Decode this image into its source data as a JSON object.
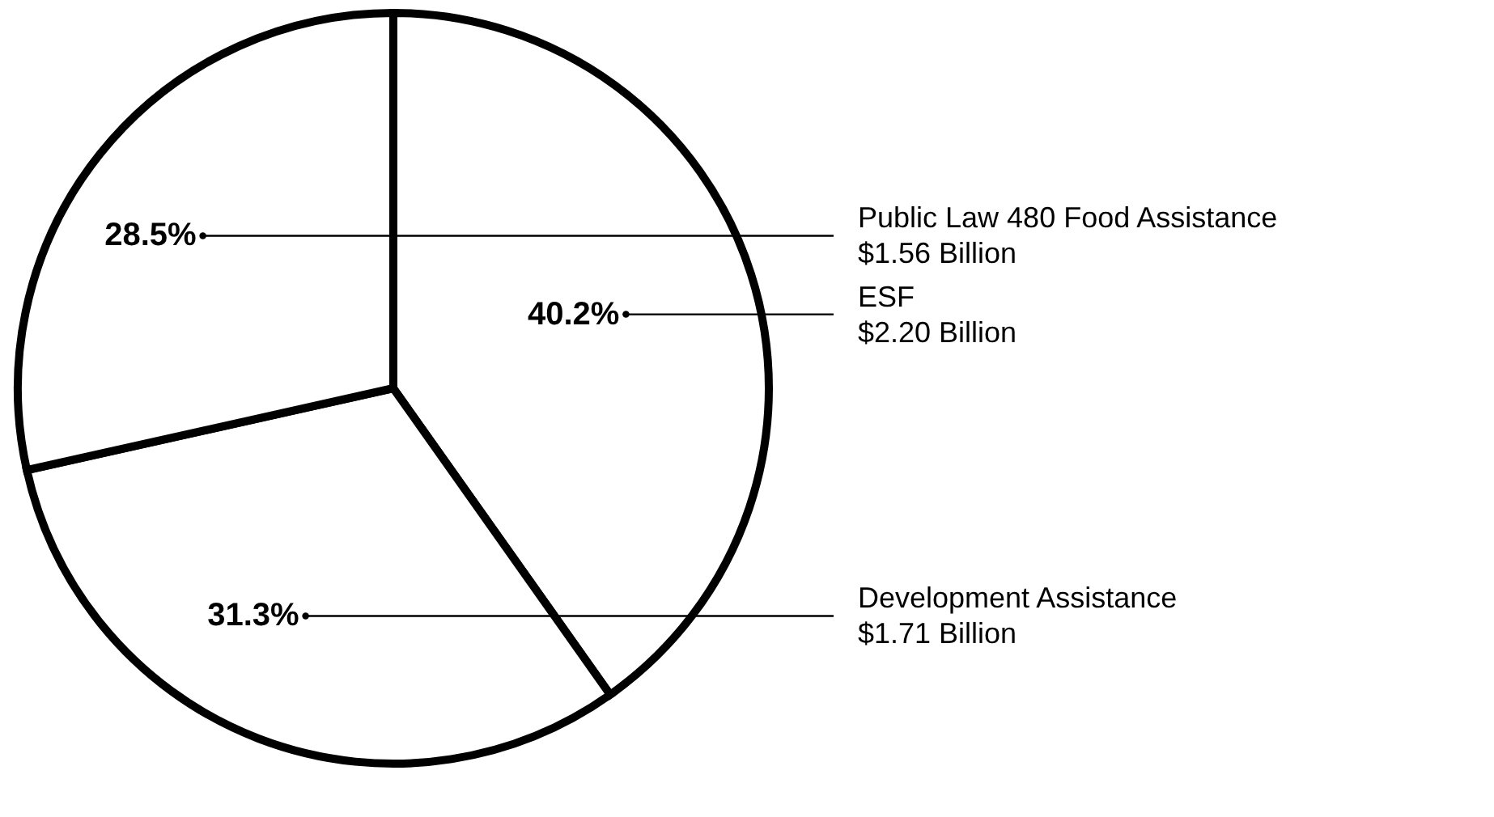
{
  "chart_data": {
    "type": "pie",
    "categories": [
      "ESF",
      "Development Assistance",
      "Public Law 480 Food Assistance"
    ],
    "values": [
      40.2,
      31.3,
      28.5
    ],
    "colors": [
      "#ffffff",
      "#ffffff",
      "#ffffff"
    ],
    "value_labels": [
      "40.2%",
      "31.3%",
      "28.5%"
    ],
    "annotations": [
      {
        "text": "$2.20 Billion",
        "x": "ESF"
      },
      {
        "text": "$1.71 Billion",
        "x": "Development Assistance"
      },
      {
        "text": "$1.56 Billion",
        "x": "Public Law 480 Food Assistance"
      }
    ]
  }
}
